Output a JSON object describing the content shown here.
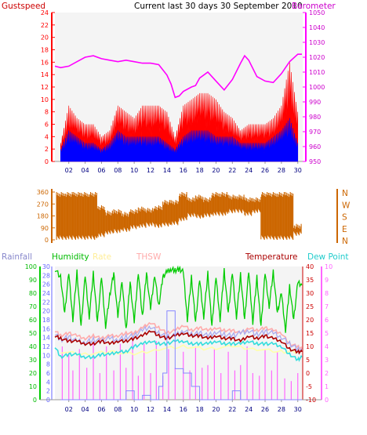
{
  "chart_data": [
    {
      "type": "line",
      "title": "Current last 30 days 30 September 2010",
      "left_axis_label": "Gustspeed",
      "right_axis_label": "Barometer",
      "x_ticks": [
        "02",
        "04",
        "06",
        "08",
        "10",
        "12",
        "14",
        "16",
        "18",
        "20",
        "22",
        "24",
        "26",
        "28",
        "30"
      ],
      "left_ticks": [
        "0",
        "2",
        "4",
        "6",
        "8",
        "10",
        "12",
        "14",
        "16",
        "18",
        "20",
        "22",
        "24"
      ],
      "right_ticks": [
        "950",
        "960",
        "970",
        "980",
        "990",
        "1000",
        "1010",
        "1020",
        "1030",
        "1040",
        "1050"
      ],
      "ylim_left": [
        0,
        24
      ],
      "ylim_right": [
        950,
        1050
      ],
      "series": [
        {
          "name": "Gustspeed",
          "axis": "left",
          "color": "#ff0000",
          "render": "area",
          "x": [
            1,
            2,
            3,
            4,
            5,
            6,
            7,
            8,
            9,
            10,
            11,
            12,
            13,
            14,
            15,
            16,
            17,
            18,
            19,
            20,
            21,
            22,
            23,
            24,
            25,
            26,
            27,
            28,
            29,
            30
          ],
          "values": [
            3,
            9,
            7,
            6,
            6,
            4,
            5,
            9,
            8,
            7,
            9,
            9,
            9,
            8,
            4,
            9,
            10,
            11,
            11,
            10,
            8,
            7,
            5,
            6,
            6,
            6,
            7,
            9,
            16,
            8
          ]
        },
        {
          "name": "",
          "axis": "left",
          "color": "#0000ff",
          "render": "area",
          "x": [
            1,
            2,
            3,
            4,
            5,
            6,
            7,
            8,
            9,
            10,
            11,
            12,
            13,
            14,
            15,
            16,
            17,
            18,
            19,
            20,
            21,
            22,
            23,
            24,
            25,
            26,
            27,
            28,
            29,
            30
          ],
          "values": [
            2,
            5,
            4,
            3,
            3,
            2,
            3,
            5,
            4,
            4,
            4,
            4,
            4,
            3,
            2,
            4,
            5,
            5,
            5,
            4,
            4,
            4,
            3,
            3,
            3,
            3,
            4,
            5,
            7,
            3
          ]
        },
        {
          "name": "Barometer",
          "axis": "right",
          "color": "#ff00ff",
          "render": "line",
          "x": [
            0.3,
            1.0,
            2.0,
            3.0,
            4.0,
            5.0,
            6.0,
            7.0,
            8.0,
            9.0,
            10.0,
            11.0,
            12.0,
            13.0,
            14.0,
            14.5,
            15.0,
            15.5,
            16.0,
            17.0,
            17.5,
            18.0,
            19.0,
            20.0,
            21.0,
            22.0,
            23.0,
            23.5,
            24.0,
            25.0,
            26.0,
            27.0,
            28.0,
            29.0,
            30.0,
            30.5
          ],
          "values": [
            1014,
            1013,
            1014,
            1017,
            1020,
            1021,
            1019,
            1018,
            1017,
            1018,
            1017,
            1016,
            1016,
            1015,
            1008,
            1002,
            993,
            994,
            997,
            1000,
            1001,
            1006,
            1010,
            1004,
            998,
            1005,
            1016,
            1021,
            1018,
            1007,
            1004,
            1003,
            1009,
            1017,
            1022,
            1022
          ]
        }
      ]
    },
    {
      "type": "line",
      "title": "",
      "left_ticks": [
        "0",
        "90",
        "180",
        "270",
        "360"
      ],
      "right_labels": [
        "N",
        "W",
        "S",
        "E",
        "N"
      ],
      "ylim": [
        0,
        360
      ],
      "series": [
        {
          "name": "",
          "color": "#cc6600",
          "render": "band",
          "x": [
            1,
            2,
            3,
            4,
            5,
            6,
            7,
            8,
            9,
            10,
            11,
            12,
            13,
            14,
            15,
            16,
            17,
            18,
            19,
            20,
            21,
            22,
            23,
            24,
            25,
            26,
            27,
            28,
            29,
            30
          ],
          "low": [
            0,
            0,
            0,
            0,
            0,
            20,
            40,
            50,
            60,
            80,
            90,
            100,
            90,
            100,
            110,
            140,
            170,
            160,
            170,
            180,
            180,
            200,
            200,
            180,
            200,
            0,
            0,
            0,
            0,
            30
          ],
          "high": [
            360,
            360,
            360,
            360,
            360,
            260,
            220,
            230,
            210,
            230,
            250,
            240,
            260,
            300,
            300,
            360,
            320,
            340,
            320,
            360,
            360,
            340,
            340,
            320,
            320,
            360,
            360,
            360,
            360,
            120
          ]
        }
      ]
    },
    {
      "type": "line",
      "title": "",
      "left_axis_label": "Rainfall",
      "left_axis_label2": "Humidity",
      "left_axis_label3": "Rate",
      "left_axis_label4": "THSW",
      "right_axis_label": "Temperature",
      "right_axis_label2": "Dew Point",
      "x_ticks": [
        "02",
        "04",
        "06",
        "08",
        "10",
        "12",
        "14",
        "16",
        "18",
        "20",
        "22",
        "24",
        "26",
        "28",
        "30"
      ],
      "humidity_ticks": [
        "0",
        "10",
        "20",
        "30",
        "40",
        "50",
        "60",
        "70",
        "80",
        "90",
        "100"
      ],
      "rainfall_ticks": [
        "0",
        "2",
        "4",
        "6",
        "8",
        "10",
        "12",
        "14",
        "16",
        "18",
        "20",
        "22",
        "24",
        "26",
        "28",
        "30"
      ],
      "temperature_ticks": [
        "-10",
        "-5",
        "0",
        "5",
        "10",
        "15",
        "20",
        "25",
        "30",
        "35",
        "40"
      ],
      "rate_ticks": [
        "0",
        "1",
        "2",
        "3",
        "4",
        "5",
        "6",
        "7",
        "8",
        "9",
        "10"
      ],
      "ylim_humidity": [
        0,
        100
      ],
      "ylim_temperature": [
        -10,
        40
      ],
      "series": [
        {
          "name": "Humidity",
          "axis": "humidity",
          "color": "#00cc00",
          "render": "line",
          "x": [
            0.3,
            1.0,
            1.5,
            2.0,
            2.5,
            3.0,
            3.5,
            4.0,
            4.5,
            5.0,
            5.5,
            6.0,
            6.5,
            7.0,
            7.5,
            8.0,
            8.5,
            9.0,
            9.5,
            10.0,
            10.5,
            11.0,
            11.5,
            12.0,
            12.5,
            13.0,
            13.5,
            14.0,
            14.5,
            15.0,
            15.5,
            16.0,
            16.5,
            17.0,
            17.5,
            18.0,
            18.5,
            19.0,
            19.5,
            20.0,
            20.5,
            21.0,
            21.5,
            22.0,
            22.5,
            23.0,
            23.5,
            24.0,
            24.5,
            25.0,
            25.5,
            26.0,
            26.5,
            27.0,
            27.5,
            28.0,
            28.5,
            29.0,
            29.5,
            30.0,
            30.5
          ],
          "values": [
            98,
            92,
            65,
            95,
            60,
            96,
            55,
            93,
            62,
            95,
            58,
            92,
            55,
            78,
            95,
            62,
            90,
            52,
            88,
            58,
            96,
            62,
            95,
            68,
            94,
            70,
            92,
            96,
            98,
            97,
            98,
            96,
            60,
            92,
            58,
            90,
            62,
            95,
            55,
            92,
            60,
            97,
            65,
            95,
            62,
            94,
            60,
            96,
            58,
            92,
            55,
            95,
            70,
            96,
            65,
            80,
            52,
            85,
            60,
            88,
            86
          ]
        },
        {
          "name": "",
          "axis": "humidity",
          "color": "#aaaaee",
          "render": "line",
          "x": [
            0.3,
            1,
            2,
            3,
            4,
            5,
            6,
            7,
            8,
            9,
            10,
            11,
            12,
            13,
            14,
            15,
            16,
            17,
            18,
            19,
            20,
            21,
            22,
            23,
            24,
            25,
            26,
            27,
            28,
            29,
            30,
            30.5
          ],
          "values": [
            50,
            45,
            47,
            44,
            43,
            45,
            44,
            46,
            45,
            47,
            48,
            52,
            55,
            50,
            47,
            48,
            52,
            49,
            50,
            48,
            51,
            49,
            48,
            50,
            52,
            49,
            51,
            50,
            47,
            42,
            38,
            36
          ]
        },
        {
          "name": "Temperature",
          "axis": "temperature",
          "color": "#aa0000",
          "render": "line",
          "x": [
            0.3,
            1,
            2,
            3,
            4,
            5,
            6,
            7,
            8,
            9,
            10,
            11,
            12,
            13,
            14,
            15,
            16,
            17,
            18,
            19,
            20,
            21,
            22,
            23,
            24,
            25,
            26,
            27,
            28,
            29,
            30,
            30.5
          ],
          "values": [
            14,
            13,
            12,
            12,
            11,
            11,
            12,
            11,
            12,
            12,
            13,
            14,
            16,
            14,
            13,
            14,
            15,
            14,
            14,
            13,
            14,
            13,
            13,
            12,
            14,
            13,
            14,
            13,
            12,
            9,
            8,
            8
          ]
        },
        {
          "name": "Dew Point",
          "axis": "temperature",
          "color": "#33dddd",
          "render": "line",
          "x": [
            0.3,
            1,
            2,
            3,
            4,
            5,
            6,
            7,
            8,
            9,
            10,
            11,
            12,
            13,
            14,
            15,
            16,
            17,
            18,
            19,
            20,
            21,
            22,
            23,
            24,
            25,
            26,
            27,
            28,
            29,
            30,
            30.5
          ],
          "values": [
            10,
            6,
            7,
            7,
            6,
            6,
            7,
            7,
            8,
            8,
            10,
            11,
            12,
            11,
            11,
            12,
            12,
            11,
            11,
            11,
            12,
            11,
            11,
            11,
            12,
            11,
            11,
            11,
            10,
            7,
            5,
            6
          ]
        },
        {
          "name": "THSW",
          "axis": "temperature",
          "color": "#ffaaaa",
          "render": "line",
          "x": [
            0.3,
            1,
            2,
            3,
            4,
            5,
            6,
            7,
            8,
            9,
            10,
            11,
            12,
            13,
            14,
            15,
            16,
            17,
            18,
            19,
            20,
            21,
            22,
            23,
            24,
            25,
            26,
            27,
            28,
            29,
            30,
            30.5
          ],
          "values": [
            16,
            14,
            15,
            14,
            13,
            14,
            13,
            14,
            14,
            15,
            15,
            17,
            19,
            17,
            15,
            16,
            18,
            16,
            17,
            16,
            17,
            16,
            16,
            15,
            17,
            16,
            17,
            16,
            15,
            11,
            10,
            9
          ]
        },
        {
          "name": "Rate",
          "axis": "temperature",
          "color": "#ffffaa",
          "render": "line",
          "x": [
            1,
            4,
            7,
            10,
            13,
            16,
            19,
            22,
            25,
            28,
            30
          ],
          "values": [
            8,
            7,
            8,
            7,
            9,
            10,
            9,
            10,
            9,
            8,
            8
          ]
        },
        {
          "name": "Rainfall",
          "axis": "rainfall",
          "color": "#8888ff",
          "render": "step",
          "x": [
            1,
            8,
            9,
            10,
            11,
            12,
            13,
            13.5,
            14,
            15,
            16,
            17,
            18,
            19,
            20,
            21,
            22,
            23,
            24,
            25,
            26,
            27,
            28,
            29,
            30,
            30.5
          ],
          "values": [
            0,
            0,
            2,
            0,
            1,
            0,
            3,
            6,
            20,
            7,
            6,
            3,
            0,
            0,
            0,
            0,
            2,
            0,
            0,
            0,
            0,
            0,
            0,
            0,
            0,
            0
          ]
        },
        {
          "name": "",
          "axis": "temperature",
          "color": "#ff66ff",
          "render": "spikes",
          "x": [
            1.2,
            2.0,
            2.5,
            3.3,
            4.2,
            5.0,
            5.8,
            6.6,
            7.5,
            8.3,
            9.0,
            9.8,
            10.5,
            11.2,
            12.0,
            12.7,
            13.5,
            14.2,
            15.0,
            16.0,
            16.8,
            17.5,
            18.3,
            19.0,
            19.8,
            20.6,
            21.5,
            22.3,
            23.0,
            23.8,
            24.5,
            25.3,
            26.0,
            26.8,
            27.5,
            28.4,
            29.2,
            30.0
          ],
          "values": [
            5,
            3,
            -4,
            4,
            -3,
            6,
            -5,
            5,
            -4,
            6,
            -3,
            7,
            -6,
            6,
            -5,
            7,
            -6,
            4,
            -3,
            3,
            -4,
            5,
            -3,
            -2,
            4,
            -5,
            3,
            -4,
            -2,
            5,
            -5,
            -6,
            4,
            -4,
            3,
            -7,
            -8,
            -5
          ]
        }
      ]
    }
  ]
}
